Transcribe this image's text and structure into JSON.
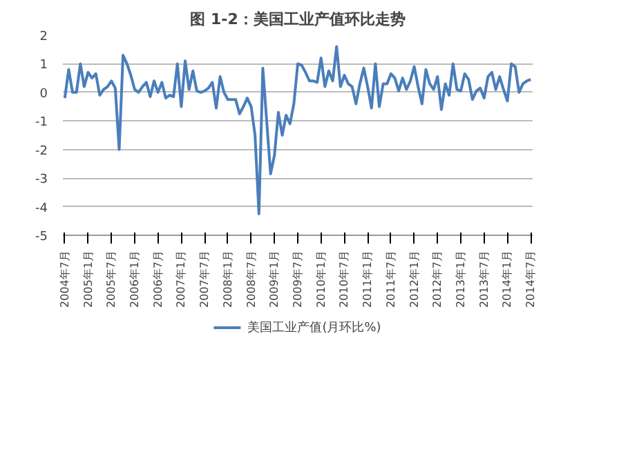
{
  "chart_data": {
    "type": "line",
    "title": "图 1-2：美国工业产值环比走势",
    "categories": [
      "2004年7月",
      null,
      null,
      null,
      null,
      null,
      "2005年1月",
      null,
      null,
      null,
      null,
      null,
      "2005年7月",
      null,
      null,
      null,
      null,
      null,
      "2006年1月",
      null,
      null,
      null,
      null,
      null,
      "2006年7月",
      null,
      null,
      null,
      null,
      null,
      "2007年1月",
      null,
      null,
      null,
      null,
      null,
      "2007年7月",
      null,
      null,
      null,
      null,
      null,
      "2008年1月",
      null,
      null,
      null,
      null,
      null,
      "2008年7月",
      null,
      null,
      null,
      null,
      null,
      "2009年1月",
      null,
      null,
      null,
      null,
      null,
      "2009年7月",
      null,
      null,
      null,
      null,
      null,
      "2010年1月",
      null,
      null,
      null,
      null,
      null,
      "2010年7月",
      null,
      null,
      null,
      null,
      null,
      "2011年1月",
      null,
      null,
      null,
      null,
      null,
      "2011年7月",
      null,
      null,
      null,
      null,
      null,
      "2012年1月",
      null,
      null,
      null,
      null,
      null,
      "2012年7月",
      null,
      null,
      null,
      null,
      null,
      "2013年1月",
      null,
      null,
      null,
      null,
      null,
      "2013年7月",
      null,
      null,
      null,
      null,
      null,
      "2014年1月",
      null,
      null,
      null,
      null,
      null,
      "2014年7月"
    ],
    "series": [
      {
        "name": "美国工业产值(月环比%)",
        "color": "#4a7ebb",
        "values": [
          -0.2,
          0.8,
          0.0,
          0.0,
          1.0,
          0.2,
          0.7,
          0.5,
          0.65,
          -0.1,
          0.1,
          0.2,
          0.4,
          0.15,
          -2.0,
          1.3,
          1.0,
          0.6,
          0.1,
          0.0,
          0.2,
          0.35,
          -0.15,
          0.4,
          0.0,
          0.35,
          -0.2,
          -0.1,
          -0.15,
          1.0,
          -0.5,
          1.1,
          0.1,
          0.75,
          0.05,
          0.0,
          0.05,
          0.15,
          0.35,
          -0.55,
          0.55,
          0.0,
          -0.25,
          -0.25,
          -0.25,
          -0.75,
          -0.5,
          -0.2,
          -0.5,
          -1.5,
          -4.25,
          0.85,
          -1.0,
          -2.85,
          -2.2,
          -0.7,
          -1.5,
          -0.8,
          -1.1,
          -0.4,
          1.0,
          0.95,
          0.7,
          0.4,
          0.4,
          0.35,
          1.2,
          0.2,
          0.75,
          0.4,
          1.6,
          0.2,
          0.6,
          0.3,
          0.2,
          -0.4,
          0.3,
          0.85,
          0.2,
          -0.55,
          1.0,
          -0.5,
          0.3,
          0.3,
          0.65,
          0.5,
          0.05,
          0.5,
          0.1,
          0.4,
          0.9,
          0.2,
          -0.4,
          0.8,
          0.3,
          0.1,
          0.55,
          -0.6,
          0.3,
          -0.1,
          1.0,
          0.1,
          0.05,
          0.65,
          0.45,
          -0.25,
          0.05,
          0.15,
          -0.2,
          0.55,
          0.7,
          0.1,
          0.55,
          0.1,
          -0.3,
          1.0,
          0.9,
          0.0,
          0.3,
          0.4,
          0.45
        ]
      }
    ],
    "ylim": [
      -5,
      2
    ],
    "yticks": [
      -5,
      -4,
      -3,
      -2,
      -1,
      0,
      1,
      2
    ],
    "grid": "y",
    "legend": "bottom",
    "marker": "none",
    "line_style": "solid"
  }
}
